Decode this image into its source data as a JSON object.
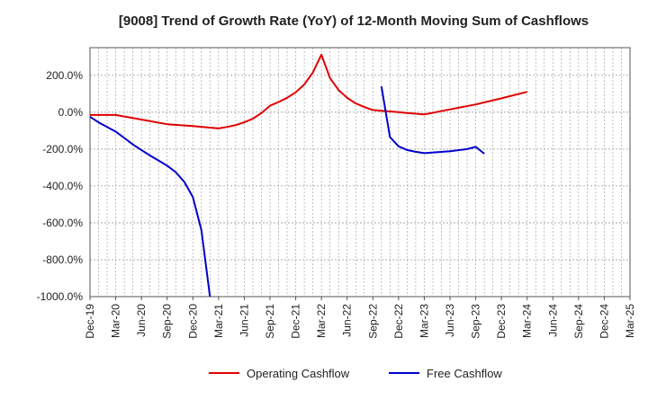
{
  "chart_data": {
    "type": "line",
    "title": "[9008]  Trend of Growth Rate (YoY) of 12-Month Moving Sum of Cashflows",
    "xlabel": "",
    "ylabel": "",
    "ylim": [
      -1000,
      350
    ],
    "y_ticks": [
      200,
      0,
      -200,
      -400,
      -600,
      -800,
      -1000
    ],
    "y_tick_labels": [
      "200.0%",
      "0.0%",
      "-200.0%",
      "-400.0%",
      "-600.0%",
      "-800.0%",
      "-1000.0%"
    ],
    "x_tick_labels": [
      "Dec-19",
      "Mar-20",
      "Jun-20",
      "Sep-20",
      "Dec-20",
      "Mar-21",
      "Jun-21",
      "Sep-21",
      "Dec-21",
      "Mar-22",
      "Jun-22",
      "Sep-22",
      "Dec-22",
      "Mar-23",
      "Jun-23",
      "Sep-23",
      "Dec-23",
      "Mar-24",
      "Jun-24",
      "Sep-24",
      "Dec-24",
      "Mar-25"
    ],
    "grid": true,
    "legend_position": "bottom",
    "series": [
      {
        "name": "Operating Cashflow",
        "color": "#e00000",
        "points": [
          [
            "Dec-19",
            -15
          ],
          [
            "Mar-20",
            -15
          ],
          [
            "Jun-20",
            -40
          ],
          [
            "Sep-20",
            -65
          ],
          [
            "Dec-20",
            -75
          ],
          [
            "Mar-21",
            -88
          ],
          [
            "Apr-21",
            -80
          ],
          [
            "May-21",
            -70
          ],
          [
            "Jun-21",
            -55
          ],
          [
            "Jul-21",
            -35
          ],
          [
            "Aug-21",
            -5
          ],
          [
            "Sep-21",
            35
          ],
          [
            "Oct-21",
            55
          ],
          [
            "Nov-21",
            78
          ],
          [
            "Dec-21",
            108
          ],
          [
            "Jan-22",
            150
          ],
          [
            "Feb-22",
            215
          ],
          [
            "Mar-22",
            312
          ],
          [
            "Apr-22",
            185
          ],
          [
            "May-22",
            120
          ],
          [
            "Jun-22",
            78
          ],
          [
            "Jul-22",
            48
          ],
          [
            "Aug-22",
            28
          ],
          [
            "Sep-22",
            12
          ],
          [
            "Oct-22",
            8
          ],
          [
            "Nov-22",
            4
          ],
          [
            "Dec-22",
            0
          ],
          [
            "Jan-23",
            -5
          ],
          [
            "Feb-23",
            -8
          ],
          [
            "Mar-23",
            -12
          ],
          [
            "Jun-23",
            15
          ],
          [
            "Sep-23",
            42
          ],
          [
            "Dec-23",
            75
          ],
          [
            "Mar-24",
            110
          ]
        ]
      },
      {
        "name": "Free Cashflow",
        "color": "#0000cc",
        "points": [
          [
            "Dec-19",
            -25
          ],
          [
            "Jan-20",
            -55
          ],
          [
            "Feb-20",
            -80
          ],
          [
            "Mar-20",
            -105
          ],
          [
            "Apr-20",
            -140
          ],
          [
            "May-20",
            -175
          ],
          [
            "Jun-20",
            -205
          ],
          [
            "Jul-20",
            -235
          ],
          [
            "Aug-20",
            -262
          ],
          [
            "Sep-20",
            -290
          ],
          [
            "Oct-20",
            -325
          ],
          [
            "Nov-20",
            -378
          ],
          [
            "Dec-20",
            -460
          ],
          [
            "Jan-21",
            -640
          ],
          [
            "Feb-21",
            -1000
          ],
          [
            "Oct-22",
            140
          ],
          [
            "Nov-22",
            -135
          ],
          [
            "Dec-22",
            -185
          ],
          [
            "Jan-23",
            -205
          ],
          [
            "Feb-23",
            -215
          ],
          [
            "Mar-23",
            -222
          ],
          [
            "Jun-23",
            -212
          ],
          [
            "Aug-23",
            -200
          ],
          [
            "Sep-23",
            -188
          ],
          [
            "Oct-23",
            -225
          ]
        ]
      }
    ]
  }
}
